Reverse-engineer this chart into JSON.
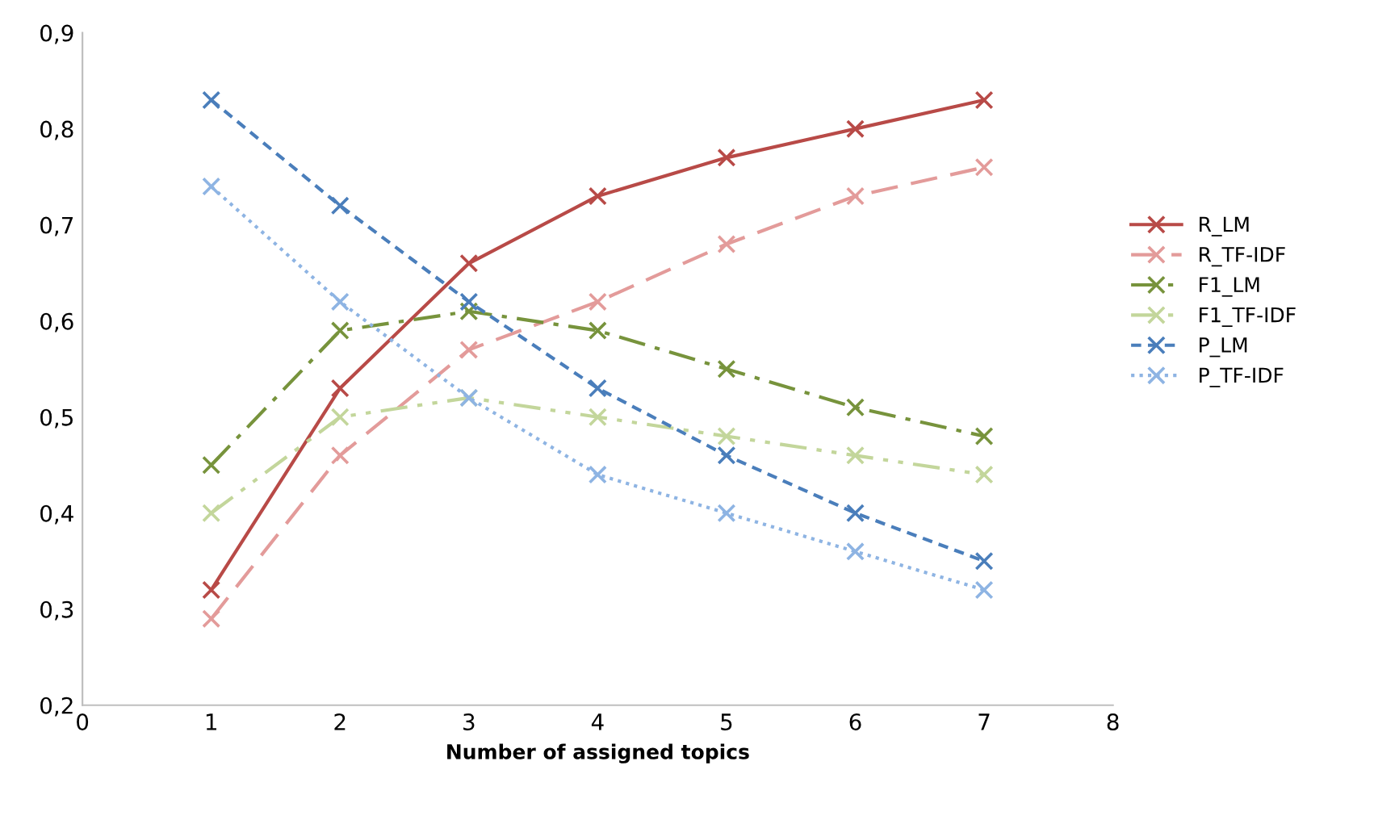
{
  "chart_data": {
    "type": "line",
    "xlabel": "Number of assigned topics",
    "x": [
      1,
      2,
      3,
      4,
      5,
      6,
      7
    ],
    "xlim": [
      0,
      8
    ],
    "xticks": [
      0,
      1,
      2,
      3,
      4,
      5,
      6,
      7,
      8
    ],
    "ylim": [
      0.2,
      0.9
    ],
    "yticks": [
      {
        "value": 0.2,
        "label": "0,2"
      },
      {
        "value": 0.3,
        "label": "0,3"
      },
      {
        "value": 0.4,
        "label": "0,4"
      },
      {
        "value": 0.5,
        "label": "0,5"
      },
      {
        "value": 0.6,
        "label": "0,6"
      },
      {
        "value": 0.7,
        "label": "0,7"
      },
      {
        "value": 0.8,
        "label": "0,8"
      },
      {
        "value": 0.9,
        "label": "0,9"
      }
    ],
    "grid": false,
    "legend": "right",
    "marker": "cross",
    "series": [
      {
        "name": "R_LM",
        "color": "#b84a47",
        "line_style": "solid",
        "values": [
          0.32,
          0.53,
          0.66,
          0.73,
          0.77,
          0.8,
          0.83
        ]
      },
      {
        "name": "R_TF-IDF",
        "color": "#e39b9a",
        "line_style": "longdash",
        "values": [
          0.29,
          0.46,
          0.57,
          0.62,
          0.68,
          0.73,
          0.76
        ]
      },
      {
        "name": "F1_LM",
        "color": "#77933c",
        "line_style": "dashdot",
        "values": [
          0.45,
          0.59,
          0.61,
          0.59,
          0.55,
          0.51,
          0.48
        ]
      },
      {
        "name": "F1_TF-IDF",
        "color": "#c3d69b",
        "line_style": "dashdotdot",
        "values": [
          0.4,
          0.5,
          0.52,
          0.5,
          0.48,
          0.46,
          0.44
        ]
      },
      {
        "name": "P_LM",
        "color": "#4a7ebb",
        "line_style": "dashed",
        "values": [
          0.83,
          0.72,
          0.62,
          0.53,
          0.46,
          0.4,
          0.35
        ]
      },
      {
        "name": "P_TF-IDF",
        "color": "#8eb4e3",
        "line_style": "dotted",
        "values": [
          0.74,
          0.62,
          0.52,
          0.44,
          0.4,
          0.36,
          0.32
        ]
      }
    ]
  }
}
